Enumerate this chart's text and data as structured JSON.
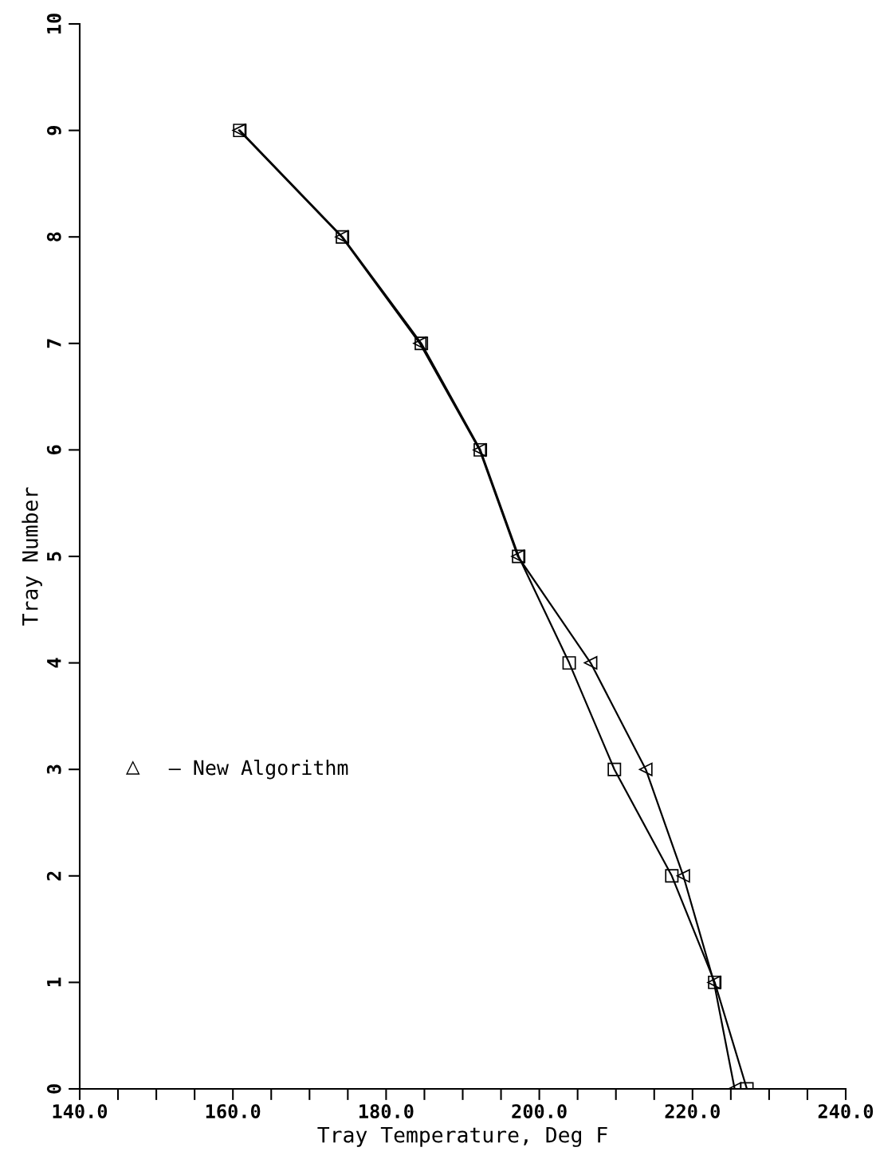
{
  "chart_data": {
    "type": "line",
    "xlabel": "Tray Temperature, Deg F",
    "ylabel": "Tray Number",
    "xlim": [
      140,
      240
    ],
    "ylim": [
      0,
      10
    ],
    "xticks": [
      {
        "value": 140,
        "label": "140.0"
      },
      {
        "value": 145,
        "label": null
      },
      {
        "value": 150,
        "label": null
      },
      {
        "value": 155,
        "label": null
      },
      {
        "value": 160,
        "label": "160.0"
      },
      {
        "value": 165,
        "label": null
      },
      {
        "value": 170,
        "label": null
      },
      {
        "value": 175,
        "label": null
      },
      {
        "value": 180,
        "label": "180.0"
      },
      {
        "value": 185,
        "label": null
      },
      {
        "value": 190,
        "label": null
      },
      {
        "value": 195,
        "label": null
      },
      {
        "value": 200,
        "label": "200.0"
      },
      {
        "value": 205,
        "label": null
      },
      {
        "value": 210,
        "label": null
      },
      {
        "value": 215,
        "label": null
      },
      {
        "value": 220,
        "label": "220.0"
      },
      {
        "value": 225,
        "label": null
      },
      {
        "value": 230,
        "label": null
      },
      {
        "value": 235,
        "label": null
      },
      {
        "value": 240,
        "label": "240.0"
      }
    ],
    "yticks": [
      0,
      1,
      2,
      3,
      4,
      5,
      6,
      7,
      8,
      9,
      10
    ],
    "grid": false,
    "legend": "left",
    "series": [
      {
        "color": "#000000",
        "marker": "square",
        "x": [
          160.9,
          174.3,
          184.6,
          192.3,
          197.3,
          203.9,
          209.8,
          217.3,
          222.9,
          227.1
        ],
        "values": [
          9,
          8,
          7,
          6,
          5,
          4,
          3,
          2,
          1,
          0
        ]
      },
      {
        "name": "– New Algorithm",
        "color": "#000000",
        "marker": "triangle",
        "x": [
          160.8,
          174.2,
          184.4,
          192.2,
          197.2,
          206.7,
          213.9,
          218.8,
          222.8,
          225.5
        ],
        "values": [
          9,
          8,
          7,
          6,
          5,
          4,
          3,
          2,
          1,
          0
        ]
      }
    ]
  }
}
